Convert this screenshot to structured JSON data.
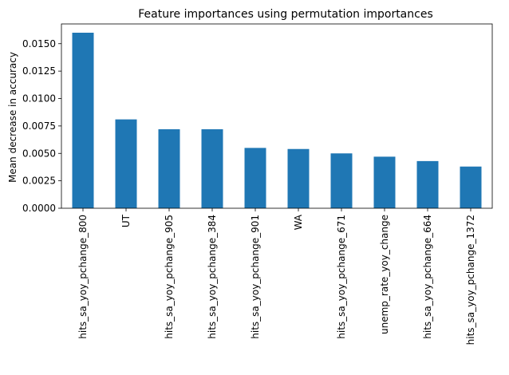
{
  "chart_data": {
    "type": "bar",
    "title": "Feature importances using permutation importances",
    "xlabel": "",
    "ylabel": "Mean decrease in accuracy",
    "categories": [
      "hits_sa_yoy_pchange_800",
      "UT",
      "hits_sa_yoy_pchange_905",
      "hits_sa_yoy_pchange_384",
      "hits_sa_yoy_pchange_901",
      "WA",
      "hits_sa_yoy_pchange_671",
      "unemp_rate_yoy_change",
      "hits_sa_yoy_pchange_664",
      "hits_sa_yoy_pchange_1372"
    ],
    "values": [
      0.016,
      0.0081,
      0.0072,
      0.0072,
      0.0055,
      0.0054,
      0.005,
      0.0047,
      0.0043,
      0.0038
    ],
    "ylim": [
      0,
      0.0168
    ],
    "yticks": [
      "0.0000",
      "0.0025",
      "0.0050",
      "0.0075",
      "0.0100",
      "0.0125",
      "0.0150"
    ],
    "grid": false,
    "legend": "none",
    "colors": {
      "bar": "#1f77b4",
      "axis": "#000000"
    }
  }
}
